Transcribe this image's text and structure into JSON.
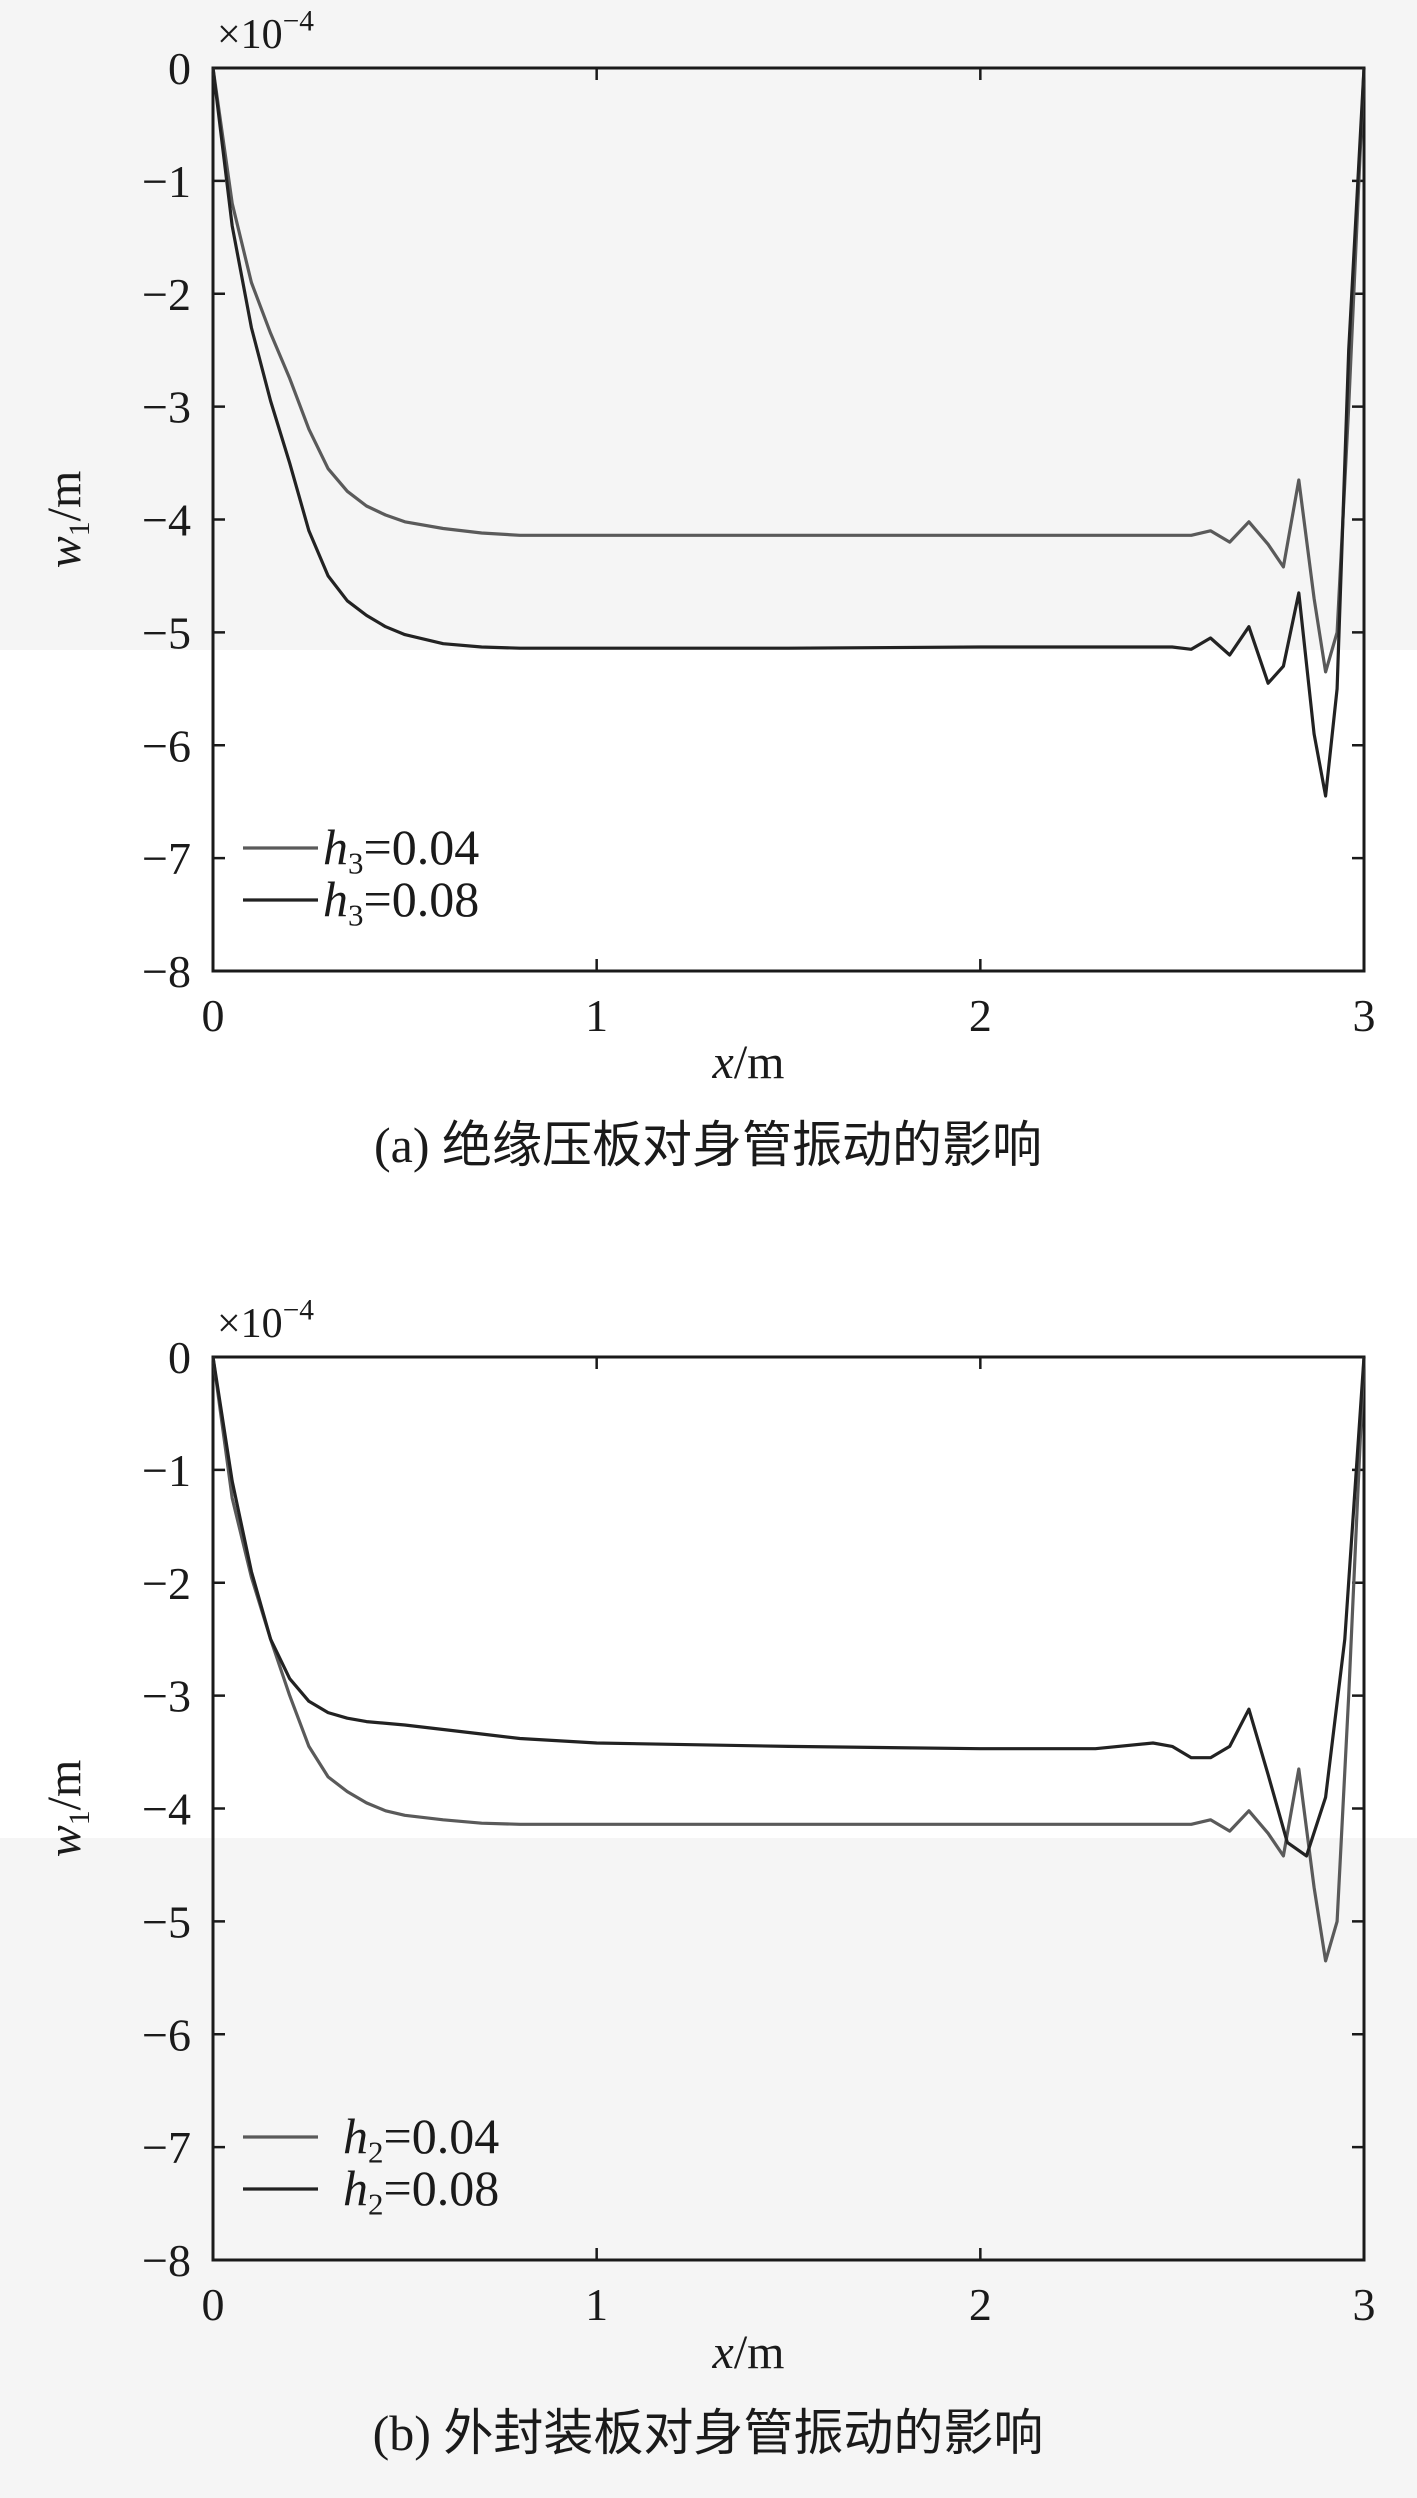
{
  "chart_data": [
    {
      "type": "line",
      "caption": "(a) 绝缘压板对身管振动的影响",
      "xlabel": "x/m",
      "ylabel": "w1/m",
      "xlim": [
        0,
        3
      ],
      "ylim": [
        -8,
        0
      ],
      "xticks": [
        "0",
        "1",
        "2",
        "3"
      ],
      "yticks": [
        "0",
        "−1",
        "−2",
        "−3",
        "−4",
        "−5",
        "−6",
        "−7",
        "−8"
      ],
      "y_multiplier": "×10−4",
      "grid": false,
      "legend_position": "bottom-left",
      "series": [
        {
          "name": "h3=0.04",
          "color": "#5a5a5a",
          "x": [
            0,
            0.05,
            0.1,
            0.15,
            0.2,
            0.25,
            0.3,
            0.35,
            0.4,
            0.45,
            0.5,
            0.6,
            0.7,
            0.8,
            1.0,
            1.5,
            2.0,
            2.4,
            2.55,
            2.6,
            2.65,
            2.7,
            2.75,
            2.79,
            2.83,
            2.87,
            2.9,
            2.93,
            2.96,
            3.0
          ],
          "y": [
            0,
            -1.2,
            -1.9,
            -2.35,
            -2.75,
            -3.2,
            -3.55,
            -3.75,
            -3.88,
            -3.96,
            -4.02,
            -4.08,
            -4.12,
            -4.14,
            -4.14,
            -4.14,
            -4.14,
            -4.14,
            -4.14,
            -4.1,
            -4.2,
            -4.02,
            -4.22,
            -4.42,
            -3.65,
            -4.7,
            -5.35,
            -5.0,
            -3.0,
            0
          ]
        },
        {
          "name": "h3=0.08",
          "color": "#222222",
          "x": [
            0,
            0.05,
            0.1,
            0.15,
            0.2,
            0.25,
            0.3,
            0.35,
            0.4,
            0.45,
            0.5,
            0.6,
            0.7,
            0.8,
            1.0,
            1.5,
            2.0,
            2.4,
            2.5,
            2.55,
            2.6,
            2.65,
            2.7,
            2.75,
            2.79,
            2.83,
            2.87,
            2.9,
            2.93,
            2.96,
            3.0
          ],
          "y": [
            0,
            -1.4,
            -2.3,
            -2.95,
            -3.5,
            -4.1,
            -4.5,
            -4.72,
            -4.85,
            -4.95,
            -5.02,
            -5.1,
            -5.13,
            -5.14,
            -5.14,
            -5.14,
            -5.13,
            -5.13,
            -5.13,
            -5.15,
            -5.05,
            -5.2,
            -4.95,
            -5.45,
            -5.3,
            -4.65,
            -5.9,
            -6.45,
            -5.5,
            -2.5,
            0
          ]
        }
      ]
    },
    {
      "type": "line",
      "caption": "(b) 外封装板对身管振动的影响",
      "xlabel": "x/m",
      "ylabel": "w1/m",
      "xlim": [
        0,
        3
      ],
      "ylim": [
        -8,
        0
      ],
      "xticks": [
        "0",
        "1",
        "2",
        "3"
      ],
      "yticks": [
        "0",
        "−1",
        "−2",
        "−3",
        "−4",
        "−5",
        "−6",
        "−7",
        "−8"
      ],
      "y_multiplier": "×10−4",
      "grid": false,
      "legend_position": "bottom-left",
      "series": [
        {
          "name": "h2=0.04",
          "color": "#5a5a5a",
          "x": [
            0,
            0.05,
            0.1,
            0.15,
            0.2,
            0.25,
            0.3,
            0.35,
            0.4,
            0.45,
            0.5,
            0.6,
            0.7,
            0.8,
            1.0,
            1.5,
            2.0,
            2.4,
            2.55,
            2.6,
            2.65,
            2.7,
            2.75,
            2.79,
            2.83,
            2.87,
            2.9,
            2.93,
            2.96,
            3.0
          ],
          "y": [
            0,
            -1.25,
            -1.95,
            -2.5,
            -3.0,
            -3.45,
            -3.72,
            -3.85,
            -3.95,
            -4.02,
            -4.06,
            -4.1,
            -4.13,
            -4.14,
            -4.14,
            -4.14,
            -4.14,
            -4.14,
            -4.14,
            -4.1,
            -4.2,
            -4.02,
            -4.22,
            -4.42,
            -3.65,
            -4.7,
            -5.35,
            -5.0,
            -3.0,
            0
          ]
        },
        {
          "name": "h2=0.08",
          "color": "#222222",
          "x": [
            0,
            0.05,
            0.1,
            0.15,
            0.2,
            0.25,
            0.3,
            0.35,
            0.4,
            0.5,
            0.6,
            0.7,
            0.8,
            1.0,
            1.5,
            2.0,
            2.3,
            2.45,
            2.5,
            2.55,
            2.6,
            2.65,
            2.7,
            2.75,
            2.8,
            2.85,
            2.9,
            2.95,
            3.0
          ],
          "y": [
            0,
            -1.1,
            -1.9,
            -2.5,
            -2.85,
            -3.05,
            -3.15,
            -3.2,
            -3.23,
            -3.26,
            -3.3,
            -3.34,
            -3.38,
            -3.42,
            -3.45,
            -3.47,
            -3.47,
            -3.42,
            -3.45,
            -3.55,
            -3.55,
            -3.45,
            -3.12,
            -3.7,
            -4.3,
            -4.42,
            -3.9,
            -2.5,
            0
          ]
        }
      ]
    }
  ]
}
